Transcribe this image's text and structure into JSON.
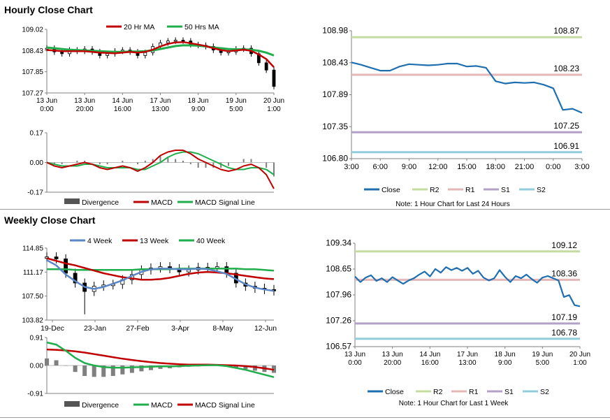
{
  "sections": {
    "hourly_title": "Hourly Close Chart",
    "weekly_title": "Weekly Close Chart"
  },
  "colors": {
    "red": "#c00000",
    "green": "#1fae4b",
    "blue_ma": "#5b86c5",
    "close_line": "#1f6fb0",
    "r2": "#c5dca0",
    "r1": "#e6b7b7",
    "s1": "#b3a2c7",
    "s2": "#92cddc",
    "axis": "#808080",
    "divergence": "#7f7f7f"
  },
  "chart_data": [
    {
      "id": "hourly_price",
      "type": "line",
      "legend": [
        "20 Hr MA",
        "50 Hrs MA"
      ],
      "y_ticks": [
        "109.02",
        "108.43",
        "107.85",
        "107.27"
      ],
      "ylim": [
        107.27,
        109.02
      ],
      "x_ticks": [
        [
          "13 Jun",
          "0:00"
        ],
        [
          "13 Jun",
          "20:00"
        ],
        [
          "14 Jun",
          "16:00"
        ],
        [
          "17 Jun",
          "13:00"
        ],
        [
          "18 Jun",
          "9:00"
        ],
        [
          "19 Jun",
          "5:00"
        ],
        [
          "20 Jun",
          "1:00"
        ]
      ],
      "series": [
        {
          "name": "Price",
          "values": [
            108.5,
            108.4,
            108.35,
            108.45,
            108.42,
            108.48,
            108.4,
            108.3,
            108.35,
            108.42,
            108.45,
            108.4,
            108.3,
            108.38,
            108.55,
            108.65,
            108.7,
            108.72,
            108.7,
            108.6,
            108.58,
            108.55,
            108.45,
            108.38,
            108.4,
            108.48,
            108.5,
            108.35,
            108.1,
            107.9,
            107.45
          ]
        },
        {
          "name": "20 Hr MA",
          "values": [
            108.45,
            108.44,
            108.42,
            108.42,
            108.42,
            108.42,
            108.4,
            108.38,
            108.37,
            108.36,
            108.38,
            108.4,
            108.38,
            108.4,
            108.46,
            108.55,
            108.62,
            108.66,
            108.67,
            108.64,
            108.6,
            108.56,
            108.5,
            108.45,
            108.42,
            108.44,
            108.46,
            108.43,
            108.33,
            108.2,
            107.98
          ]
        },
        {
          "name": "50 Hrs MA",
          "values": [
            108.52,
            108.5,
            108.48,
            108.46,
            108.45,
            108.44,
            108.43,
            108.42,
            108.41,
            108.4,
            108.4,
            108.41,
            108.41,
            108.42,
            108.44,
            108.48,
            108.52,
            108.56,
            108.58,
            108.58,
            108.57,
            108.55,
            108.52,
            108.5,
            108.48,
            108.47,
            108.47,
            108.46,
            108.43,
            108.38,
            108.3
          ]
        }
      ]
    },
    {
      "id": "hourly_macd",
      "type": "line",
      "legend": [
        "Divergence",
        "MACD",
        "MACD Signal Line"
      ],
      "y_ticks": [
        "0.17",
        "0.00",
        "-0.17"
      ],
      "ylim": [
        -0.17,
        0.17
      ],
      "series": [
        {
          "name": "MACD",
          "values": [
            0.0,
            -0.02,
            -0.03,
            -0.02,
            -0.01,
            0.0,
            -0.01,
            -0.03,
            -0.04,
            -0.03,
            -0.02,
            -0.03,
            -0.05,
            -0.03,
            0.0,
            0.04,
            0.06,
            0.07,
            0.07,
            0.05,
            0.02,
            0.0,
            -0.02,
            -0.04,
            -0.05,
            -0.04,
            -0.02,
            -0.01,
            -0.03,
            -0.07,
            -0.15
          ]
        },
        {
          "name": "MACD Signal Line",
          "values": [
            0.0,
            -0.01,
            -0.02,
            -0.02,
            -0.02,
            -0.01,
            -0.01,
            -0.02,
            -0.03,
            -0.03,
            -0.03,
            -0.03,
            -0.04,
            -0.04,
            -0.02,
            0.0,
            0.03,
            0.05,
            0.06,
            0.06,
            0.05,
            0.03,
            0.01,
            -0.01,
            -0.03,
            -0.04,
            -0.04,
            -0.03,
            -0.03,
            -0.04,
            -0.07
          ]
        },
        {
          "name": "Divergence",
          "values": [
            0.0,
            -0.01,
            -0.01,
            0.0,
            0.01,
            0.01,
            0.0,
            -0.01,
            -0.01,
            0.0,
            0.01,
            0.0,
            -0.01,
            0.01,
            0.02,
            0.04,
            0.03,
            0.02,
            0.01,
            -0.01,
            -0.03,
            -0.03,
            -0.03,
            -0.03,
            -0.02,
            0.0,
            0.02,
            0.02,
            0.0,
            -0.03,
            -0.08
          ]
        }
      ]
    },
    {
      "id": "hourly_levels",
      "type": "line",
      "legend": [
        "Close",
        "R2",
        "R1",
        "S1",
        "S2"
      ],
      "note": "Note: 1 Hour Chart for Last 24 Hours",
      "y_ticks": [
        "108.98",
        "108.43",
        "107.89",
        "107.35",
        "106.80"
      ],
      "ylim": [
        106.8,
        108.98
      ],
      "x_ticks": [
        "3:00",
        "6:00",
        "9:00",
        "12:00",
        "15:00",
        "18:00",
        "21:00",
        "0:00",
        "3:00"
      ],
      "levels": [
        {
          "name": "R2",
          "value": 108.87,
          "label": "108.87"
        },
        {
          "name": "R1",
          "value": 108.23,
          "label": "108.23"
        },
        {
          "name": "S1",
          "value": 107.25,
          "label": "107.25"
        },
        {
          "name": "S2",
          "value": 106.91,
          "label": "106.91"
        }
      ],
      "series": [
        {
          "name": "Close",
          "values": [
            108.44,
            108.4,
            108.35,
            108.3,
            108.3,
            108.37,
            108.41,
            108.4,
            108.39,
            108.4,
            108.42,
            108.42,
            108.37,
            108.38,
            108.35,
            108.12,
            108.08,
            108.1,
            108.09,
            108.1,
            108.06,
            108.0,
            107.63,
            107.65,
            107.58
          ]
        }
      ]
    },
    {
      "id": "weekly_price",
      "type": "line",
      "legend": [
        "4 Week",
        "13 Week",
        "40 Week"
      ],
      "y_ticks": [
        "114.85",
        "111.17",
        "107.50",
        "103.82"
      ],
      "ylim": [
        103.82,
        114.85
      ],
      "x_ticks": [
        "19-Dec",
        "23-Jan",
        "27-Feb",
        "3-Apr",
        "8-May",
        "12-Jun"
      ],
      "series": [
        {
          "name": "Price",
          "values": [
            113.5,
            113.2,
            111.0,
            109.5,
            108.2,
            109.0,
            109.2,
            109.3,
            110.0,
            110.8,
            111.5,
            111.8,
            112.0,
            111.7,
            111.2,
            111.5,
            111.9,
            111.8,
            112.0,
            111.0,
            109.5,
            109.0,
            108.7,
            108.5,
            108.3
          ]
        },
        {
          "name": "4 Week",
          "values": [
            113.0,
            112.2,
            110.8,
            109.8,
            108.9,
            108.6,
            108.9,
            109.4,
            109.9,
            110.6,
            111.2,
            111.6,
            111.7,
            111.7,
            111.6,
            111.6,
            111.7,
            111.6,
            111.3,
            110.9,
            110.1,
            109.3,
            108.8,
            108.5,
            108.3
          ]
        },
        {
          "name": "13 Week",
          "values": [
            113.3,
            112.9,
            112.5,
            112.2,
            111.8,
            111.4,
            111.0,
            110.7,
            110.4,
            110.2,
            110.0,
            110.0,
            110.1,
            110.3,
            110.6,
            110.9,
            111.1,
            111.2,
            111.1,
            111.0,
            110.8,
            110.6,
            110.4,
            110.2,
            110.1
          ]
        },
        {
          "name": "40 Week",
          "values": [
            111.6,
            111.6,
            111.6,
            111.5,
            111.5,
            111.5,
            111.5,
            111.5,
            111.5,
            111.5,
            111.6,
            111.6,
            111.6,
            111.6,
            111.7,
            111.7,
            111.7,
            111.7,
            111.7,
            111.7,
            111.7,
            111.6,
            111.6,
            111.5,
            111.4
          ]
        }
      ]
    },
    {
      "id": "weekly_macd",
      "type": "line",
      "legend": [
        "Divergence",
        "MACD",
        "MACD Signal Line"
      ],
      "y_ticks": [
        "0.91",
        "0.00",
        "-0.91"
      ],
      "ylim": [
        -0.91,
        0.91
      ],
      "series": [
        {
          "name": "MACD",
          "values": [
            0.75,
            0.68,
            0.48,
            0.25,
            0.08,
            0.0,
            -0.05,
            -0.07,
            -0.07,
            -0.06,
            -0.05,
            -0.04,
            -0.03,
            -0.03,
            -0.02,
            -0.01,
            0.0,
            0.01,
            0.01,
            -0.02,
            -0.08,
            -0.14,
            -0.22,
            -0.3,
            -0.38
          ]
        },
        {
          "name": "MACD Signal Line",
          "values": [
            0.52,
            0.51,
            0.49,
            0.46,
            0.42,
            0.37,
            0.32,
            0.27,
            0.22,
            0.18,
            0.14,
            0.11,
            0.08,
            0.06,
            0.04,
            0.03,
            0.03,
            0.03,
            0.02,
            0.01,
            0.0,
            -0.02,
            -0.05,
            -0.09,
            -0.14
          ]
        },
        {
          "name": "Divergence",
          "values": [
            0.23,
            0.17,
            -0.01,
            -0.21,
            -0.34,
            -0.37,
            -0.37,
            -0.34,
            -0.29,
            -0.24,
            -0.19,
            -0.15,
            -0.11,
            -0.09,
            -0.06,
            -0.04,
            -0.03,
            -0.02,
            -0.01,
            -0.03,
            -0.08,
            -0.12,
            -0.17,
            -0.21,
            -0.24
          ]
        }
      ]
    },
    {
      "id": "weekly_levels",
      "type": "line",
      "legend": [
        "Close",
        "R2",
        "R1",
        "S1",
        "S2"
      ],
      "note": "Note: 1 Hour Chart for Last 1 Week",
      "y_ticks": [
        "109.34",
        "108.65",
        "107.96",
        "107.26",
        "106.57"
      ],
      "ylim": [
        106.57,
        109.34
      ],
      "x_ticks": [
        [
          "13 Jun",
          "0:00"
        ],
        [
          "13 Jun",
          "20:00"
        ],
        [
          "14 Jun",
          "16:00"
        ],
        [
          "17 Jun",
          "13:00"
        ],
        [
          "18 Jun",
          "9:00"
        ],
        [
          "19 Jun",
          "5:00"
        ],
        [
          "20 Jun",
          "1:00"
        ]
      ],
      "levels": [
        {
          "name": "R2",
          "value": 109.12,
          "label": "109.12"
        },
        {
          "name": "R1",
          "value": 108.36,
          "label": "108.36"
        },
        {
          "name": "S1",
          "value": 107.19,
          "label": "107.19"
        },
        {
          "name": "S2",
          "value": 106.78,
          "label": "106.78"
        }
      ],
      "series": [
        {
          "name": "Close",
          "values": [
            108.45,
            108.3,
            108.42,
            108.48,
            108.33,
            108.4,
            108.3,
            108.43,
            108.34,
            108.25,
            108.34,
            108.4,
            108.5,
            108.58,
            108.45,
            108.65,
            108.55,
            108.7,
            108.62,
            108.68,
            108.6,
            108.68,
            108.52,
            108.6,
            108.42,
            108.34,
            108.4,
            108.62,
            108.44,
            108.3,
            108.46,
            108.4,
            108.5,
            108.38,
            108.28,
            108.42,
            108.46,
            108.4,
            108.34,
            107.9,
            107.95,
            107.68,
            107.65
          ]
        }
      ]
    }
  ]
}
